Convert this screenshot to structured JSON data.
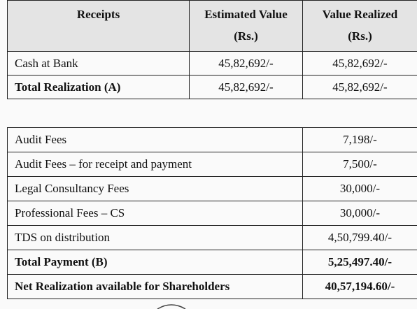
{
  "table1": {
    "header": [
      "Receipts",
      "Estimated Value",
      "(Rs.)",
      "Value Realized",
      "(Rs.)"
    ],
    "rows": [
      [
        "Cash at Bank",
        "45,82,692/-",
        "45,82,692/-"
      ],
      [
        "Total Realization (A)",
        "45,82,692/-",
        "45,82,692/-"
      ]
    ]
  },
  "table2": {
    "rows": [
      [
        "Audit Fees",
        "7,198/-"
      ],
      [
        "Audit Fees – for receipt and payment",
        "7,500/-"
      ],
      [
        "Legal Consultancy Fees",
        "30,000/-"
      ],
      [
        "Professional Fees – CS",
        "30,000/-"
      ],
      [
        "TDS on distribution",
        "4,50,799.40/-"
      ],
      [
        "Total Payment (B)",
        "5,25,497.40/-"
      ],
      [
        "Net Realization available for Shareholders",
        "40,57,194.60/-"
      ]
    ]
  }
}
